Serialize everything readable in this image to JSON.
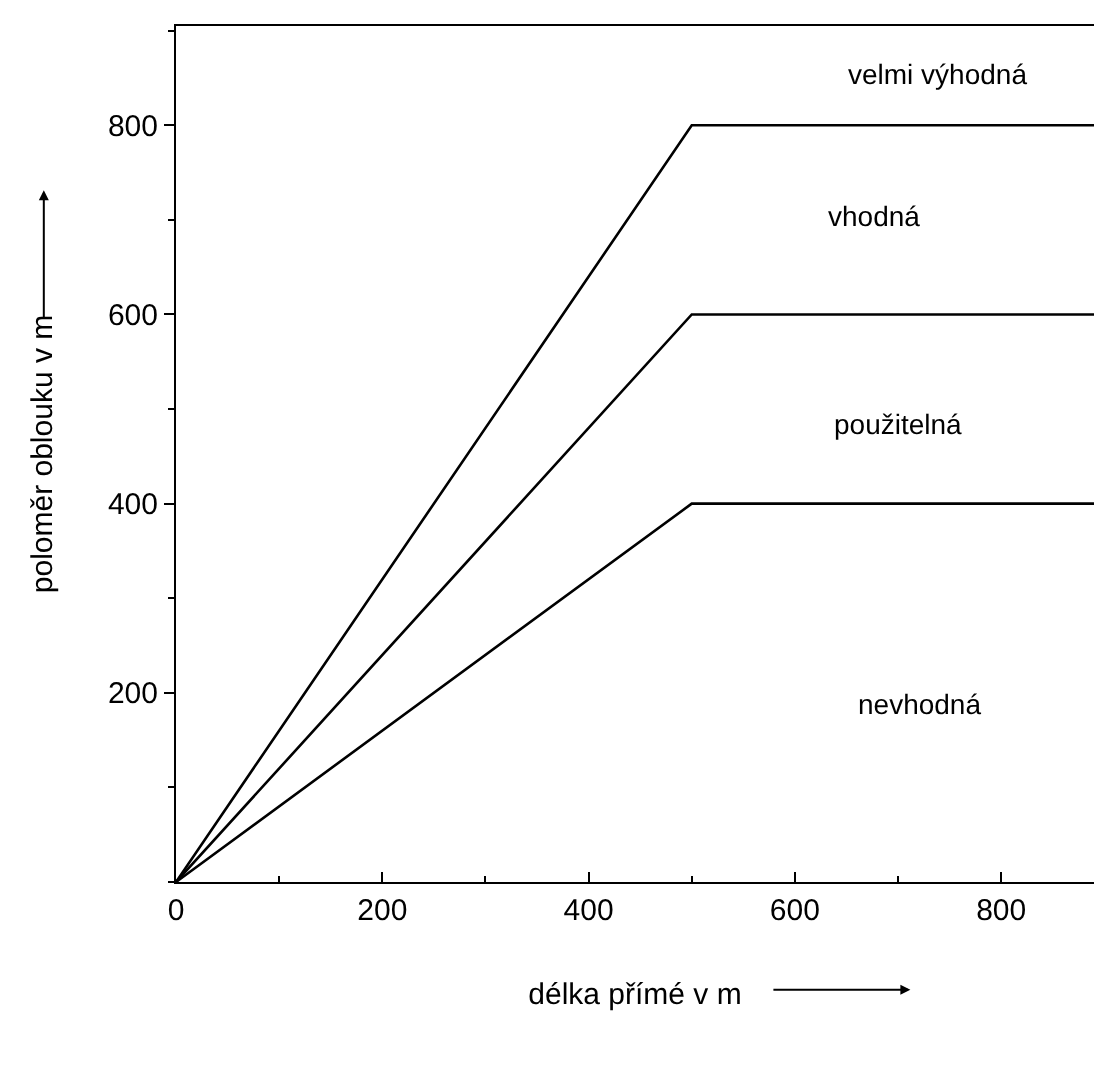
{
  "chart_data": {
    "type": "line",
    "xlabel": "délka přímé v m",
    "ylabel": "poloměr oblouku v m",
    "x": [
      0,
      500,
      890
    ],
    "series": [
      {
        "color": "#000000",
        "values": [
          0,
          800,
          800
        ]
      },
      {
        "color": "#000000",
        "values": [
          0,
          600,
          600
        ]
      },
      {
        "color": "#000000",
        "values": [
          0,
          400,
          400
        ]
      }
    ],
    "xlim": [
      0,
      890
    ],
    "ylim": [
      0,
      905
    ],
    "xticks": [
      0,
      200,
      400,
      600,
      800
    ],
    "yticks": [
      200,
      400,
      600,
      800
    ],
    "marker": "none",
    "line_style": "solid",
    "annotations": [
      "velmi výhodná",
      "vhodná",
      "použitelná",
      "nevhodná"
    ]
  }
}
